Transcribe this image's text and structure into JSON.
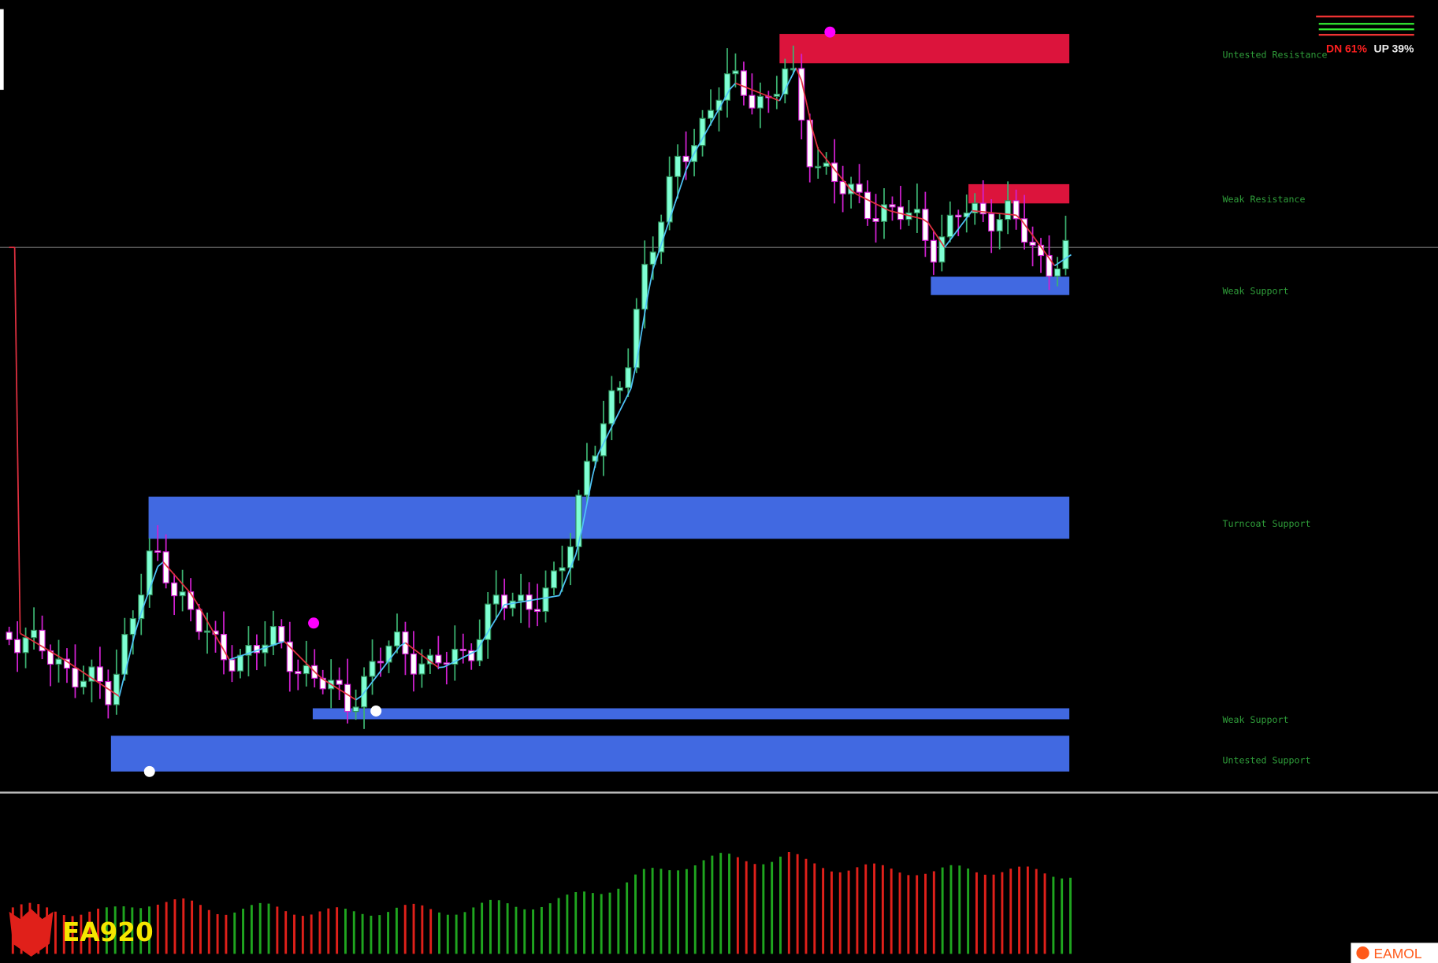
{
  "zones": [
    {
      "label": "Untested Resistance"
    },
    {
      "label": "Weak Resistance"
    },
    {
      "label": "Weak Support"
    },
    {
      "label": "Turncoat Support"
    },
    {
      "label": "Weak Support"
    },
    {
      "label": "Untested Support"
    }
  ],
  "strength": {
    "down": "DN 61%",
    "up": "UP 39%"
  },
  "logo": "EA920",
  "watermark": "EAMOL"
}
